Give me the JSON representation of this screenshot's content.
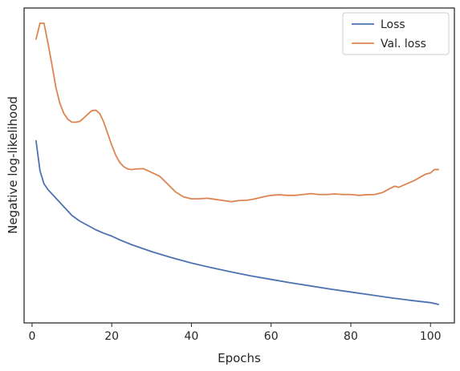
{
  "chart_data": {
    "type": "line",
    "xlabel": "Epochs",
    "ylabel": "Negative log-likelihood",
    "xlim": [
      -2,
      106
    ],
    "ylim": [
      0.0,
      1.0
    ],
    "y_ticks_labeled": false,
    "xticks": [
      0,
      20,
      40,
      60,
      80,
      100
    ],
    "grid": false,
    "legend": "top-right",
    "series": [
      {
        "name": "Loss",
        "color": "#4c72b0",
        "x": [
          1,
          2,
          3,
          4,
          5,
          6,
          7,
          8,
          9,
          10,
          12,
          14,
          16,
          18,
          20,
          22,
          25,
          30,
          35,
          40,
          45,
          50,
          55,
          60,
          65,
          70,
          75,
          80,
          85,
          90,
          95,
          100,
          102
        ],
        "y": [
          0.59,
          0.485,
          0.44,
          0.42,
          0.405,
          0.39,
          0.375,
          0.36,
          0.345,
          0.33,
          0.31,
          0.295,
          0.28,
          0.268,
          0.258,
          0.245,
          0.228,
          0.204,
          0.183,
          0.164,
          0.148,
          0.133,
          0.119,
          0.107,
          0.095,
          0.084,
          0.073,
          0.063,
          0.053,
          0.043,
          0.034,
          0.026,
          0.02
        ]
      },
      {
        "name": "Val. loss",
        "color": "#dd8452",
        "x": [
          1,
          2,
          3,
          4,
          5,
          6,
          7,
          8,
          9,
          10,
          11,
          12,
          13,
          14,
          15,
          16,
          17,
          18,
          19,
          20,
          21,
          22,
          23,
          24,
          25,
          26,
          28,
          30,
          32,
          34,
          36,
          38,
          40,
          42,
          44,
          46,
          48,
          50,
          52,
          54,
          56,
          58,
          60,
          62,
          64,
          66,
          68,
          70,
          72,
          74,
          76,
          78,
          80,
          82,
          84,
          86,
          88,
          90,
          91,
          92,
          94,
          96,
          98,
          99,
          100,
          101,
          102
        ],
        "y": [
          0.945,
          1.0,
          1.0,
          0.93,
          0.855,
          0.775,
          0.72,
          0.685,
          0.665,
          0.655,
          0.655,
          0.658,
          0.67,
          0.683,
          0.695,
          0.697,
          0.685,
          0.655,
          0.615,
          0.575,
          0.54,
          0.515,
          0.5,
          0.492,
          0.49,
          0.492,
          0.493,
          0.48,
          0.467,
          0.44,
          0.412,
          0.395,
          0.388,
          0.388,
          0.39,
          0.386,
          0.382,
          0.378,
          0.382,
          0.383,
          0.388,
          0.395,
          0.4,
          0.402,
          0.4,
          0.4,
          0.403,
          0.406,
          0.403,
          0.403,
          0.405,
          0.403,
          0.403,
          0.4,
          0.402,
          0.403,
          0.41,
          0.425,
          0.432,
          0.428,
          0.44,
          0.452,
          0.468,
          0.475,
          0.478,
          0.49,
          0.49
        ]
      }
    ]
  }
}
